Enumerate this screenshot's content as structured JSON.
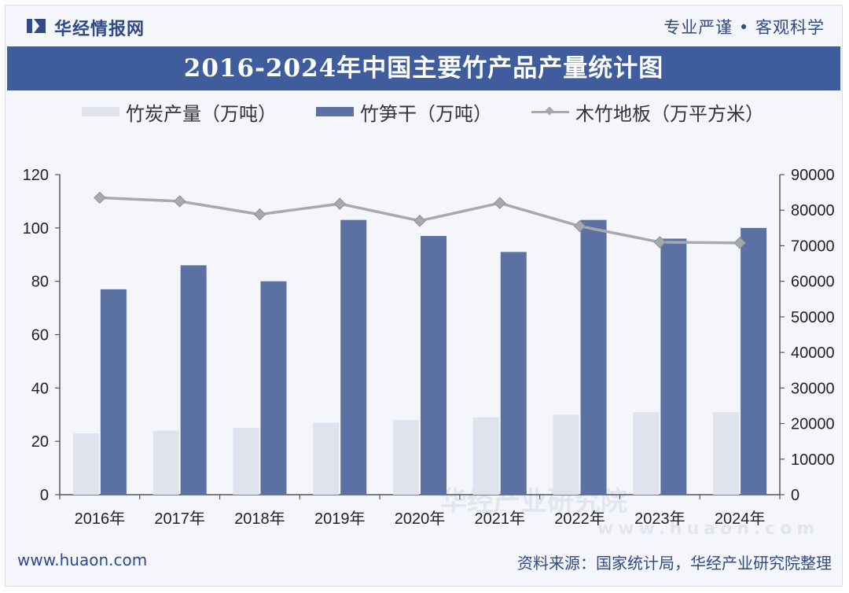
{
  "brand": {
    "name": "华经情报网",
    "slogan": "专业严谨 • 客观科学"
  },
  "title": "2016-2024年中国主要竹产品产量统计图",
  "legend": {
    "charcoal": "竹炭产量（万吨）",
    "shoots": "竹笋干（万吨）",
    "flooring": "木竹地板（万平方米）"
  },
  "watermark": {
    "cn": "华经产业研究院",
    "en": "www.huaon.com"
  },
  "footer": {
    "website": "www.huaon.com",
    "source": "资料来源：国家统计局，华经产业研究院整理"
  },
  "colors": {
    "charcoal": "#dfe3ee",
    "shoots": "#5b71a4",
    "flooring": "#a6a9ae",
    "header": "#3f5d9c",
    "text": "#2f4a86"
  },
  "chart_data": {
    "type": "bar",
    "title": "2016-2024年中国主要竹产品产量统计图",
    "categories": [
      "2016年",
      "2017年",
      "2018年",
      "2019年",
      "2020年",
      "2021年",
      "2022年",
      "2023年",
      "2024年"
    ],
    "series": [
      {
        "name": "竹炭产量（万吨）",
        "type": "bar",
        "axis": "left",
        "values": [
          23,
          24,
          25,
          27,
          28,
          29,
          30,
          31,
          31
        ]
      },
      {
        "name": "竹笋干（万吨）",
        "type": "bar",
        "axis": "left",
        "values": [
          77,
          86,
          80,
          103,
          97,
          91,
          103,
          96,
          100
        ]
      },
      {
        "name": "木竹地板（万平方米）",
        "type": "line",
        "axis": "right",
        "values": [
          83500,
          82500,
          78800,
          81800,
          77000,
          82000,
          75500,
          71000,
          70800
        ]
      }
    ],
    "y_left": {
      "min": 0,
      "max": 120,
      "ticks": [
        0,
        20,
        40,
        60,
        80,
        100,
        120
      ]
    },
    "y_right": {
      "min": 0,
      "max": 90000,
      "ticks": [
        0,
        10000,
        20000,
        30000,
        40000,
        50000,
        60000,
        70000,
        80000,
        90000
      ]
    },
    "grid": false,
    "legend_position": "top"
  }
}
